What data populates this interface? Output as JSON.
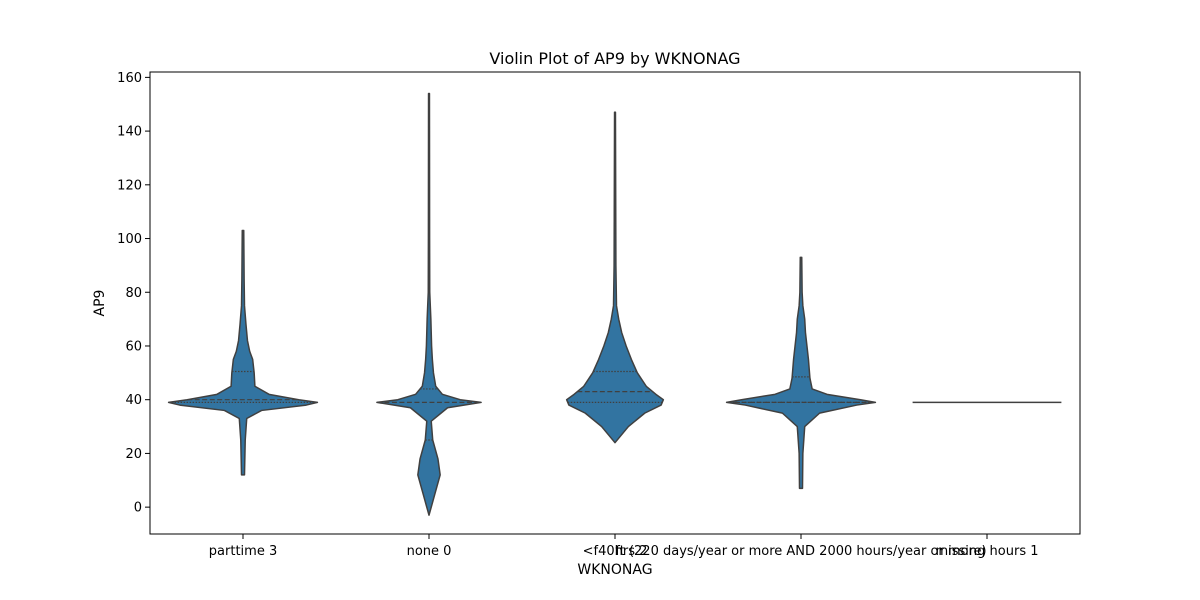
{
  "chart_data": {
    "type": "violin",
    "title": "Violin Plot of AP9 by WKNONAG",
    "xlabel": "WKNONAG",
    "ylabel": "AP9",
    "ylim": [
      -10,
      162
    ],
    "yticks": [
      0,
      20,
      40,
      60,
      80,
      100,
      120,
      140,
      160
    ],
    "categories": [
      "parttime 3",
      "none 0",
      "<f40hrs 2",
      "ft (220 days/year or more AND 2000 hours/year or more)",
      "missing hours 1"
    ],
    "color": "#3274a1",
    "inner": "quartile",
    "grid": false,
    "violins": [
      {
        "category": "parttime 3",
        "min": 12,
        "max": 103,
        "quartiles": [
          39,
          40,
          50.5
        ],
        "profile": [
          [
            12,
            0.02
          ],
          [
            25,
            0.03
          ],
          [
            33,
            0.05
          ],
          [
            36,
            0.25
          ],
          [
            38,
            0.85
          ],
          [
            39,
            1.0
          ],
          [
            40,
            0.75
          ],
          [
            42,
            0.35
          ],
          [
            45,
            0.16
          ],
          [
            50,
            0.15
          ],
          [
            55,
            0.13
          ],
          [
            58,
            0.09
          ],
          [
            62,
            0.06
          ],
          [
            68,
            0.04
          ],
          [
            75,
            0.02
          ],
          [
            85,
            0.015
          ],
          [
            103,
            0.01
          ]
        ]
      },
      {
        "category": "none 0",
        "min": -3,
        "max": 154,
        "quartiles": [
          25,
          39,
          44
        ],
        "profile": [
          [
            -3,
            0.0
          ],
          [
            0,
            0.03
          ],
          [
            5,
            0.08
          ],
          [
            12,
            0.15
          ],
          [
            18,
            0.12
          ],
          [
            25,
            0.05
          ],
          [
            32,
            0.03
          ],
          [
            37,
            0.25
          ],
          [
            39,
            0.7
          ],
          [
            40,
            0.42
          ],
          [
            42,
            0.18
          ],
          [
            45,
            0.09
          ],
          [
            50,
            0.06
          ],
          [
            55,
            0.045
          ],
          [
            60,
            0.035
          ],
          [
            70,
            0.025
          ],
          [
            80,
            0.01
          ],
          [
            100,
            0.008
          ],
          [
            154,
            0.006
          ]
        ]
      },
      {
        "category": "<f40hrs 2",
        "min": 24,
        "max": 147,
        "quartiles": [
          39,
          43,
          50.5
        ],
        "profile": [
          [
            24,
            0.0
          ],
          [
            26,
            0.06
          ],
          [
            30,
            0.18
          ],
          [
            35,
            0.4
          ],
          [
            38,
            0.62
          ],
          [
            40,
            0.65
          ],
          [
            42,
            0.55
          ],
          [
            45,
            0.42
          ],
          [
            50,
            0.3
          ],
          [
            55,
            0.22
          ],
          [
            60,
            0.15
          ],
          [
            65,
            0.09
          ],
          [
            70,
            0.05
          ],
          [
            75,
            0.02
          ],
          [
            90,
            0.012
          ],
          [
            147,
            0.006
          ]
        ]
      },
      {
        "category": "ft (220 days/year or more AND 2000 hours/year or more)",
        "min": 7,
        "max": 93,
        "quartiles": [
          39,
          39,
          48.5
        ],
        "profile": [
          [
            7,
            0.02
          ],
          [
            20,
            0.025
          ],
          [
            30,
            0.05
          ],
          [
            35,
            0.25
          ],
          [
            38,
            0.75
          ],
          [
            39,
            1.0
          ],
          [
            40,
            0.8
          ],
          [
            42,
            0.35
          ],
          [
            44,
            0.15
          ],
          [
            48,
            0.12
          ],
          [
            55,
            0.1
          ],
          [
            60,
            0.08
          ],
          [
            65,
            0.06
          ],
          [
            70,
            0.05
          ],
          [
            75,
            0.025
          ],
          [
            80,
            0.015
          ],
          [
            93,
            0.01
          ]
        ]
      },
      {
        "category": "missing hours 1",
        "min": 39,
        "max": 39,
        "quartiles": [
          39,
          39,
          39
        ],
        "profile": [
          [
            39,
            1.0
          ]
        ],
        "flat": true
      }
    ]
  }
}
